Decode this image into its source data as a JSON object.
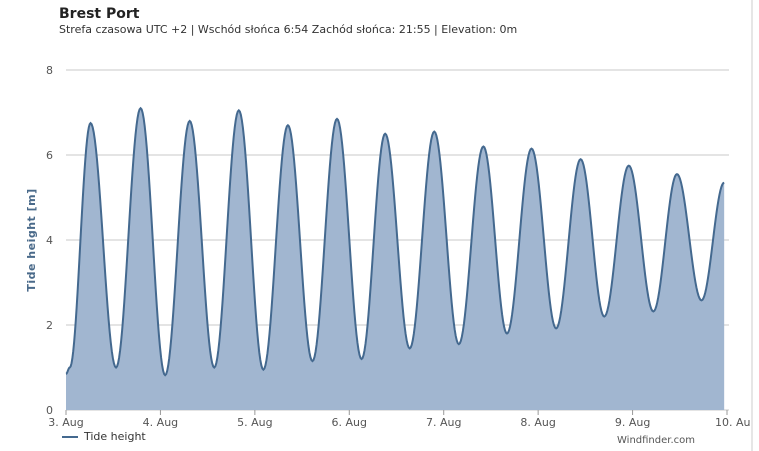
{
  "header": {
    "title": "Brest Port",
    "subtitle": "Strefa czasowa UTC +2 | Wschód słońca 6:54 Zachód słońca: 21:55 | Elevation: 0m"
  },
  "legend": {
    "label": "Tide height"
  },
  "credit": "Windfinder.com",
  "colors": {
    "line": "#44698f",
    "fill": "#a1b6d0",
    "grid": "#c8c8c8"
  },
  "chart_data": {
    "type": "area",
    "title": "",
    "xlabel": "",
    "ylabel": "Tide height [m]",
    "ylim": [
      0,
      8
    ],
    "yticks": [
      "0",
      "2",
      "4",
      "6",
      "8"
    ],
    "xticks": [
      "3. Aug",
      "4. Aug",
      "5. Aug",
      "6. Aug",
      "7. Aug",
      "8. Aug",
      "9. Aug",
      "10. Au"
    ],
    "grid": true,
    "legend_position": "bottom-left",
    "series": [
      {
        "name": "Tide height",
        "points": [
          [
            0.0,
            0.85
          ],
          [
            0.04,
            1.0
          ],
          [
            0.26,
            6.75
          ],
          [
            0.53,
            1.0
          ],
          [
            0.79,
            7.1
          ],
          [
            1.05,
            0.82
          ],
          [
            1.31,
            6.8
          ],
          [
            1.57,
            1.0
          ],
          [
            1.83,
            7.05
          ],
          [
            2.09,
            0.95
          ],
          [
            2.35,
            6.7
          ],
          [
            2.61,
            1.15
          ],
          [
            2.87,
            6.85
          ],
          [
            3.13,
            1.2
          ],
          [
            3.38,
            6.5
          ],
          [
            3.64,
            1.45
          ],
          [
            3.9,
            6.55
          ],
          [
            4.16,
            1.55
          ],
          [
            4.42,
            6.2
          ],
          [
            4.67,
            1.8
          ],
          [
            4.93,
            6.15
          ],
          [
            5.19,
            1.92
          ],
          [
            5.45,
            5.9
          ],
          [
            5.7,
            2.2
          ],
          [
            5.96,
            5.75
          ],
          [
            6.22,
            2.32
          ],
          [
            6.47,
            5.55
          ],
          [
            6.73,
            2.58
          ],
          [
            6.97,
            5.35
          ]
        ]
      }
    ]
  }
}
